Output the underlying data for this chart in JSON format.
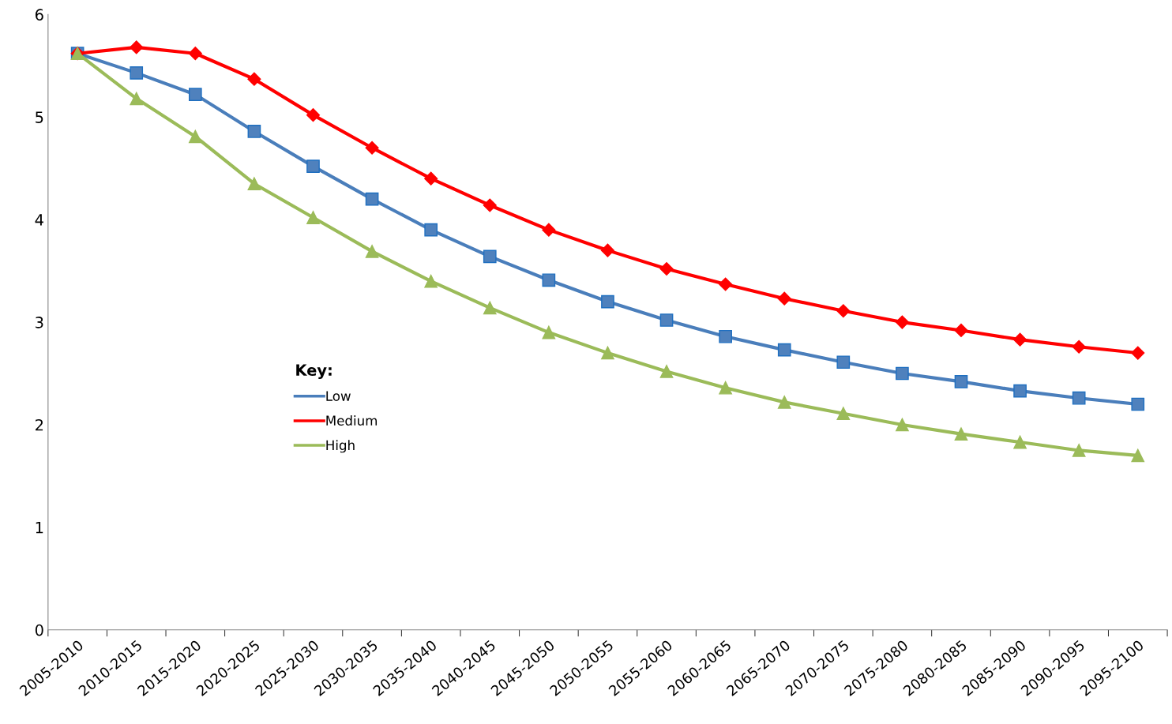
{
  "chart_data": {
    "type": "line",
    "legend_title": "Key:",
    "legend": "center left",
    "grid": false,
    "categories": [
      "2005-2010",
      "2010-2015",
      "2015-2020",
      "2020-2025",
      "2025-2030",
      "2030-2035",
      "2035-2040",
      "2040-2045",
      "2045-2050",
      "2050-2055",
      "2055-2060",
      "2060-2065",
      "2065-2070",
      "2070-2075",
      "2075-2080",
      "2080-2085",
      "2085-2090",
      "2090-2095",
      "2095-2100"
    ],
    "ylim": [
      0,
      6
    ],
    "yticks": [
      0,
      1,
      2,
      3,
      4,
      5,
      6
    ],
    "series": [
      {
        "name": "Low",
        "color": "#4a7ebb",
        "marker": "square",
        "values": [
          5.62,
          5.43,
          5.22,
          4.86,
          4.52,
          4.2,
          3.9,
          3.64,
          3.41,
          3.2,
          3.02,
          2.86,
          2.73,
          2.61,
          2.5,
          2.42,
          2.33,
          2.26,
          2.2
        ]
      },
      {
        "name": "Medium",
        "color": "#ff0000",
        "marker": "diamond",
        "values": [
          5.62,
          5.68,
          5.62,
          5.37,
          5.02,
          4.7,
          4.4,
          4.14,
          3.9,
          3.7,
          3.52,
          3.37,
          3.23,
          3.11,
          3.0,
          2.92,
          2.83,
          2.76,
          2.7
        ]
      },
      {
        "name": "High",
        "color": "#9bbb59",
        "marker": "triangle",
        "values": [
          5.62,
          5.18,
          4.81,
          4.35,
          4.02,
          3.69,
          3.4,
          3.14,
          2.9,
          2.7,
          2.52,
          2.36,
          2.22,
          2.11,
          2.0,
          1.91,
          1.83,
          1.75,
          1.7
        ]
      }
    ]
  }
}
